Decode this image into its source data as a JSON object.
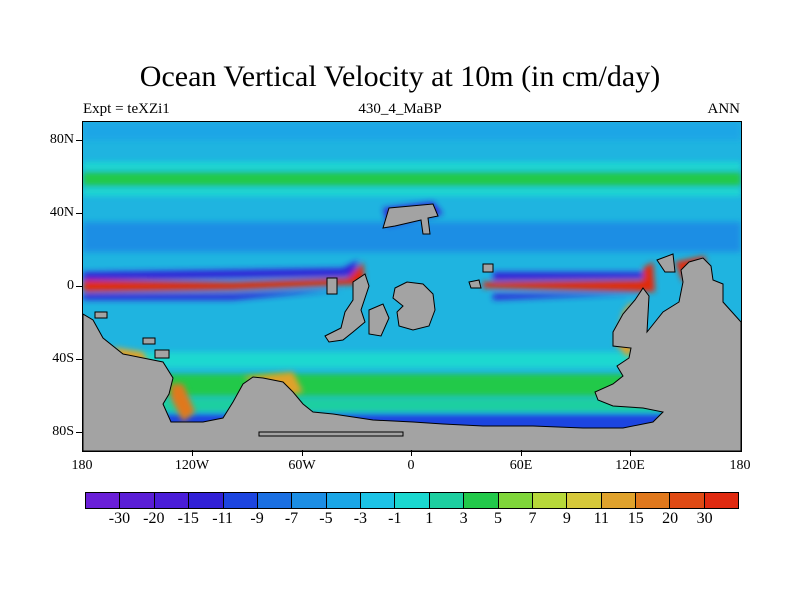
{
  "title": "Ocean Vertical Velocity at 10m (in cm/day)",
  "subtitle_left": "Expt = teXZi1",
  "subtitle_center": "430_4_MaBP",
  "subtitle_right": "ANN",
  "y_ticks": [
    "80N",
    "40N",
    "0",
    "40S",
    "80S"
  ],
  "x_ticks": [
    "180",
    "120W",
    "60W",
    "0",
    "60E",
    "120E",
    "180"
  ],
  "colorbar": {
    "labels": [
      "-30",
      "-20",
      "-15",
      "-11",
      "-9",
      "-7",
      "-5",
      "-3",
      "-1",
      "1",
      "3",
      "5",
      "7",
      "9",
      "11",
      "15",
      "20",
      "30"
    ],
    "colors": [
      "#6a1fd8",
      "#5a1ed6",
      "#4a1dd8",
      "#3120d6",
      "#1c45e0",
      "#1a6fe2",
      "#1c8ee4",
      "#1aa6e6",
      "#1cc3e6",
      "#1ad8d0",
      "#1ccfa0",
      "#22c94a",
      "#7fd63a",
      "#b7d83a",
      "#d6c83a",
      "#e0a22c",
      "#e0781c",
      "#e04a14",
      "#e02a10"
    ]
  },
  "colors": {
    "land": "#a3a3a3",
    "ocean_base": "#1fb4e0",
    "upwelling": "#e02a10",
    "downwelling": "#3120d6",
    "high_lat_band": "#22c94a"
  }
}
